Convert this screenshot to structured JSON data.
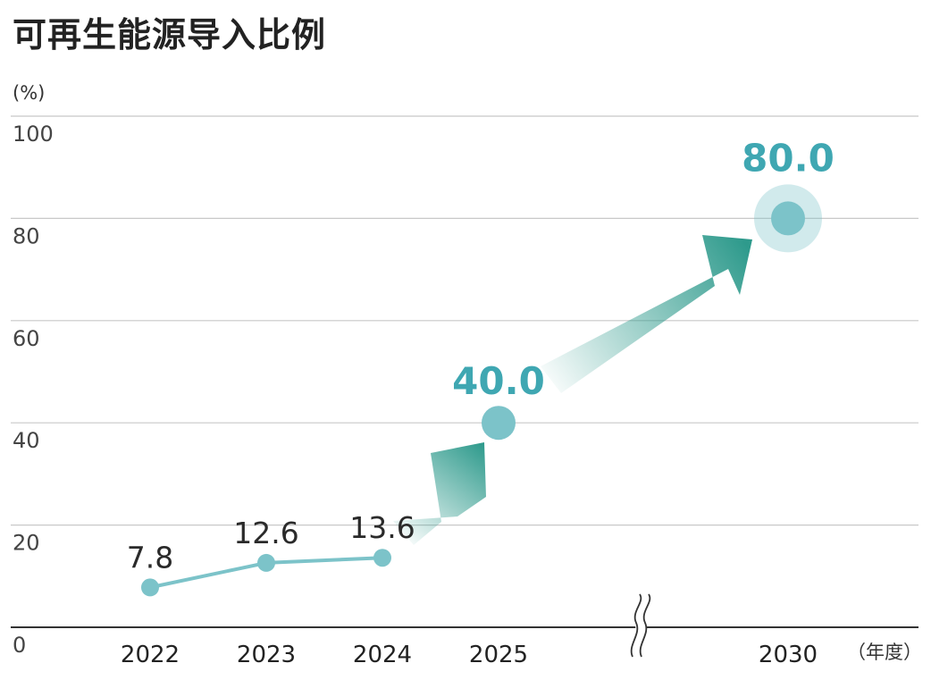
{
  "title": "可再生能源导入比例",
  "chart_data": {
    "type": "line",
    "title": "可再生能源导入比例",
    "ylabel": "(%)",
    "xlabel": "（年度）",
    "ylim": [
      0,
      100
    ],
    "yticks": [
      {
        "value": 0,
        "label": "0"
      },
      {
        "value": 20,
        "label": "20"
      },
      {
        "value": 40,
        "label": "40"
      },
      {
        "value": 60,
        "label": "60"
      },
      {
        "value": 80,
        "label": "80"
      },
      {
        "value": 100,
        "label": "100"
      }
    ],
    "grid": true,
    "axis_break_between": [
      "2025",
      "2030"
    ],
    "points": [
      {
        "x": "2022",
        "value": 7.8,
        "label": "7.8",
        "kind": "actual"
      },
      {
        "x": "2023",
        "value": 12.6,
        "label": "12.6",
        "kind": "actual"
      },
      {
        "x": "2024",
        "value": 13.6,
        "label": "13.6",
        "kind": "actual"
      },
      {
        "x": "2025",
        "value": 40.0,
        "label": "40.0",
        "kind": "target"
      },
      {
        "x": "2030",
        "value": 80.0,
        "label": "80.0",
        "kind": "target"
      }
    ],
    "colors": {
      "line": "#7cc3c9",
      "target_label": "#3fa7b2",
      "arrow": "#2e9a8c",
      "grid": "#c8c8c8",
      "axis": "#333333"
    }
  }
}
